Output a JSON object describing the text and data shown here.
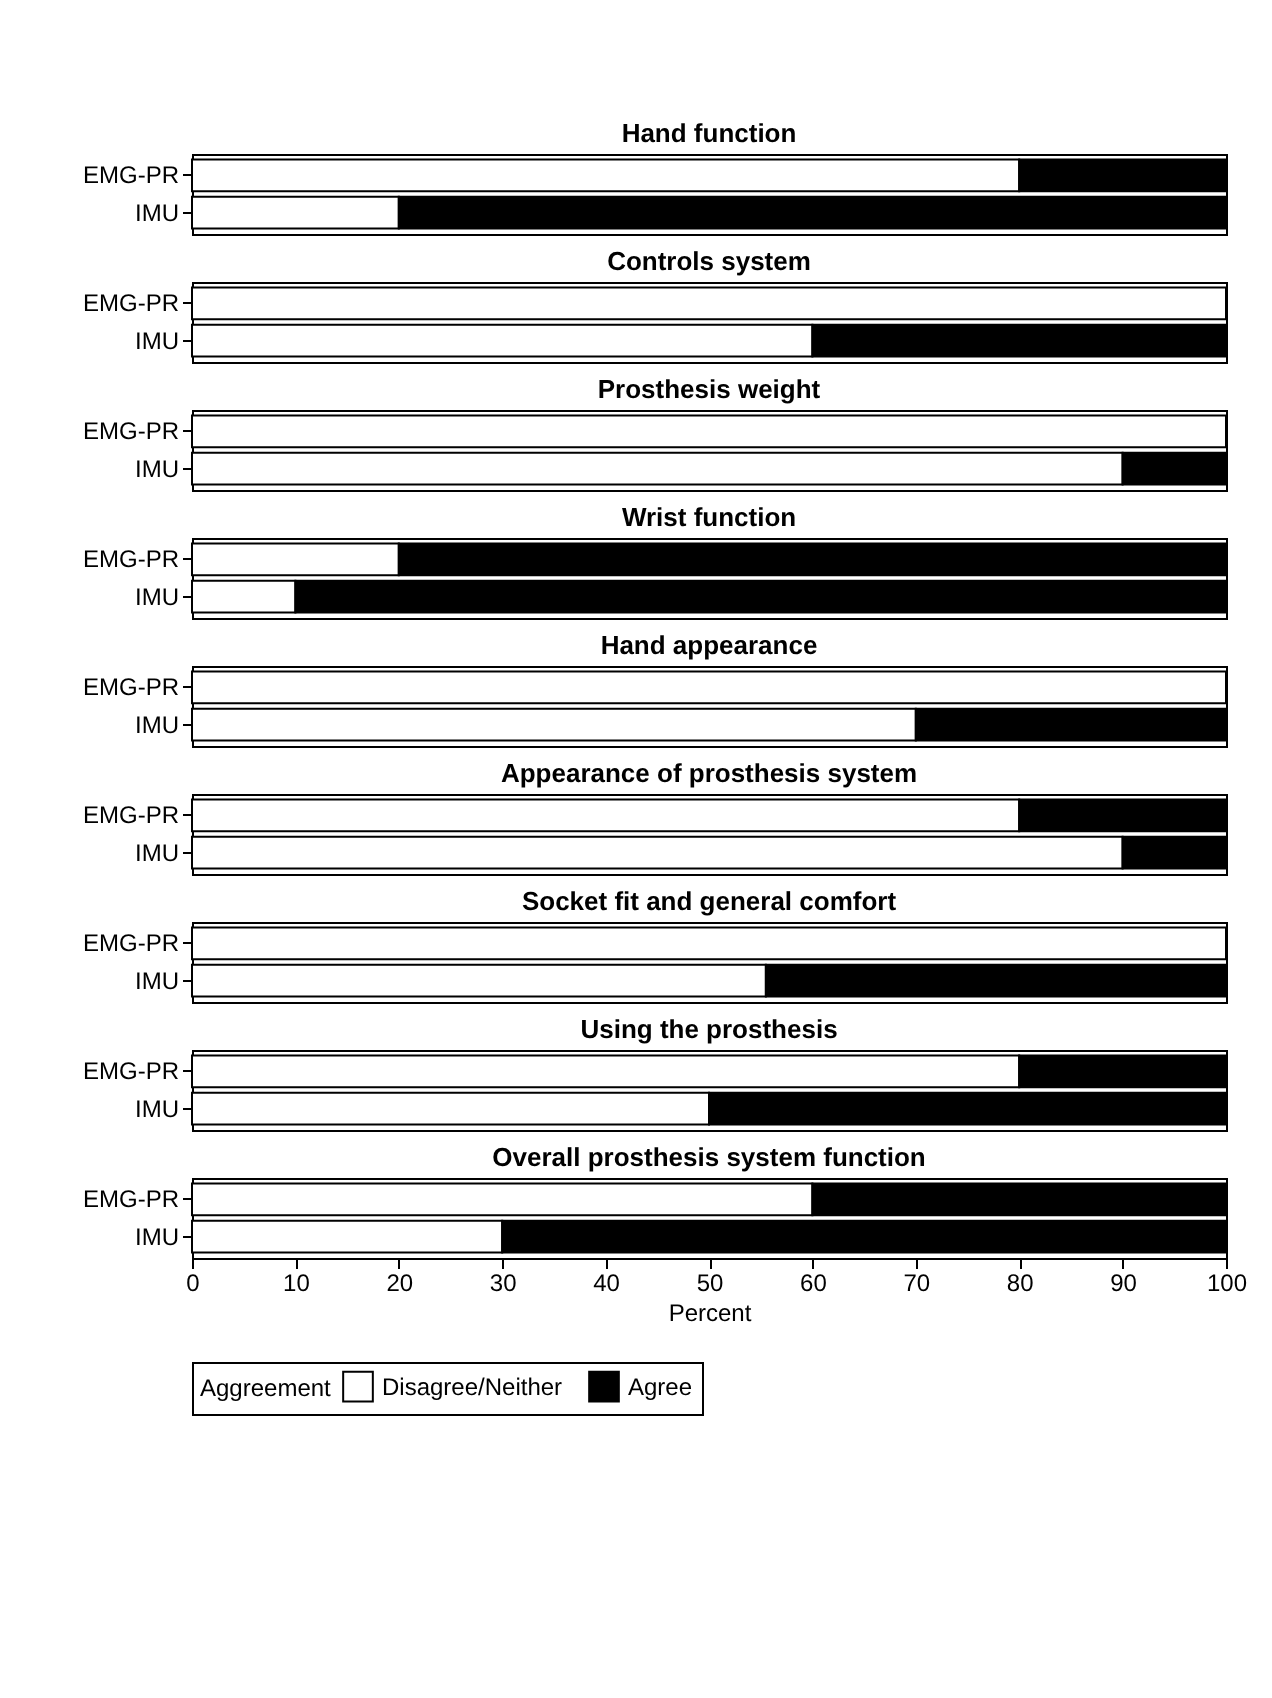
{
  "chart_data": [
    {
      "type": "bar",
      "orientation": "horizontal",
      "stacked": true,
      "title": "Hand function",
      "categories": [
        "EMG-PR",
        "IMU"
      ],
      "xlim": [
        0,
        100
      ],
      "xticks": [
        0,
        10,
        20,
        30,
        40,
        50,
        60,
        70,
        80,
        90,
        100
      ],
      "tick_labels": "y",
      "grid": false,
      "legend": "bottom",
      "legend_title": "Aggreement",
      "series": [
        {
          "name": "Disagree/Neither",
          "color": "#ffffff",
          "values": [
            80,
            20
          ]
        },
        {
          "name": "Agree",
          "color": "#000000",
          "values": [
            20,
            80
          ]
        }
      ]
    },
    {
      "type": "bar",
      "orientation": "horizontal",
      "stacked": true,
      "title": "Controls system",
      "categories": [
        "EMG-PR",
        "IMU"
      ],
      "xlim": [
        0,
        100
      ],
      "xticks": [
        0,
        10,
        20,
        30,
        40,
        50,
        60,
        70,
        80,
        90,
        100
      ],
      "tick_labels": "y",
      "grid": false,
      "series": [
        {
          "color": "#ffffff",
          "values": [
            100,
            60
          ]
        },
        {
          "color": "#000000",
          "values": [
            0,
            40
          ]
        }
      ]
    },
    {
      "type": "bar",
      "orientation": "horizontal",
      "stacked": true,
      "title": "Prosthesis weight",
      "categories": [
        "EMG-PR",
        "IMU"
      ],
      "xlim": [
        0,
        100
      ],
      "xticks": [
        0,
        10,
        20,
        30,
        40,
        50,
        60,
        70,
        80,
        90,
        100
      ],
      "tick_labels": "y",
      "grid": false,
      "series": [
        {
          "color": "#ffffff",
          "values": [
            100,
            90
          ]
        },
        {
          "color": "#000000",
          "values": [
            0,
            10
          ]
        }
      ]
    },
    {
      "type": "bar",
      "orientation": "horizontal",
      "stacked": true,
      "title": "Wrist function",
      "categories": [
        "EMG-PR",
        "IMU"
      ],
      "xlim": [
        0,
        100
      ],
      "xticks": [
        0,
        10,
        20,
        30,
        40,
        50,
        60,
        70,
        80,
        90,
        100
      ],
      "tick_labels": "y",
      "grid": false,
      "series": [
        {
          "color": "#ffffff",
          "values": [
            20,
            10
          ]
        },
        {
          "color": "#000000",
          "values": [
            80,
            90
          ]
        }
      ]
    },
    {
      "type": "bar",
      "orientation": "horizontal",
      "stacked": true,
      "title": "Hand appearance",
      "categories": [
        "EMG-PR",
        "IMU"
      ],
      "xlim": [
        0,
        100
      ],
      "xticks": [
        0,
        10,
        20,
        30,
        40,
        50,
        60,
        70,
        80,
        90,
        100
      ],
      "tick_labels": "y",
      "grid": false,
      "series": [
        {
          "color": "#ffffff",
          "values": [
            100,
            70
          ]
        },
        {
          "color": "#000000",
          "values": [
            0,
            30
          ]
        }
      ]
    },
    {
      "type": "bar",
      "orientation": "horizontal",
      "stacked": true,
      "title": "Appearance of prosthesis system",
      "categories": [
        "EMG-PR",
        "IMU"
      ],
      "xlim": [
        0,
        100
      ],
      "xticks": [
        0,
        10,
        20,
        30,
        40,
        50,
        60,
        70,
        80,
        90,
        100
      ],
      "tick_labels": "y",
      "grid": false,
      "series": [
        {
          "color": "#ffffff",
          "values": [
            80,
            90
          ]
        },
        {
          "color": "#000000",
          "values": [
            20,
            10
          ]
        }
      ]
    },
    {
      "type": "bar",
      "orientation": "horizontal",
      "stacked": true,
      "title": "Socket fit and general comfort",
      "categories": [
        "EMG-PR",
        "IMU"
      ],
      "xlim": [
        0,
        100
      ],
      "xticks": [
        0,
        10,
        20,
        30,
        40,
        50,
        60,
        70,
        80,
        90,
        100
      ],
      "tick_labels": "y",
      "grid": false,
      "series": [
        {
          "color": "#ffffff",
          "values": [
            100,
            55.5
          ]
        },
        {
          "color": "#000000",
          "values": [
            0,
            44.5
          ]
        }
      ]
    },
    {
      "type": "bar",
      "orientation": "horizontal",
      "stacked": true,
      "title": "Using the prosthesis",
      "categories": [
        "EMG-PR",
        "IMU"
      ],
      "xlim": [
        0,
        100
      ],
      "xticks": [
        0,
        10,
        20,
        30,
        40,
        50,
        60,
        70,
        80,
        90,
        100
      ],
      "tick_labels": "y",
      "grid": false,
      "series": [
        {
          "color": "#ffffff",
          "values": [
            80,
            50
          ]
        },
        {
          "color": "#000000",
          "values": [
            20,
            50
          ]
        }
      ]
    },
    {
      "type": "bar",
      "orientation": "horizontal",
      "stacked": true,
      "title": "Overall prosthesis system function",
      "categories": [
        "EMG-PR",
        "IMU"
      ],
      "xlim": [
        0,
        100
      ],
      "xticks": [
        0,
        10,
        20,
        30,
        40,
        50,
        60,
        70,
        80,
        90,
        100
      ],
      "xlabel": "Percent",
      "grid": false,
      "series": [
        {
          "color": "#ffffff",
          "values": [
            60,
            30
          ]
        },
        {
          "color": "#000000",
          "values": [
            40,
            70
          ]
        }
      ]
    }
  ]
}
